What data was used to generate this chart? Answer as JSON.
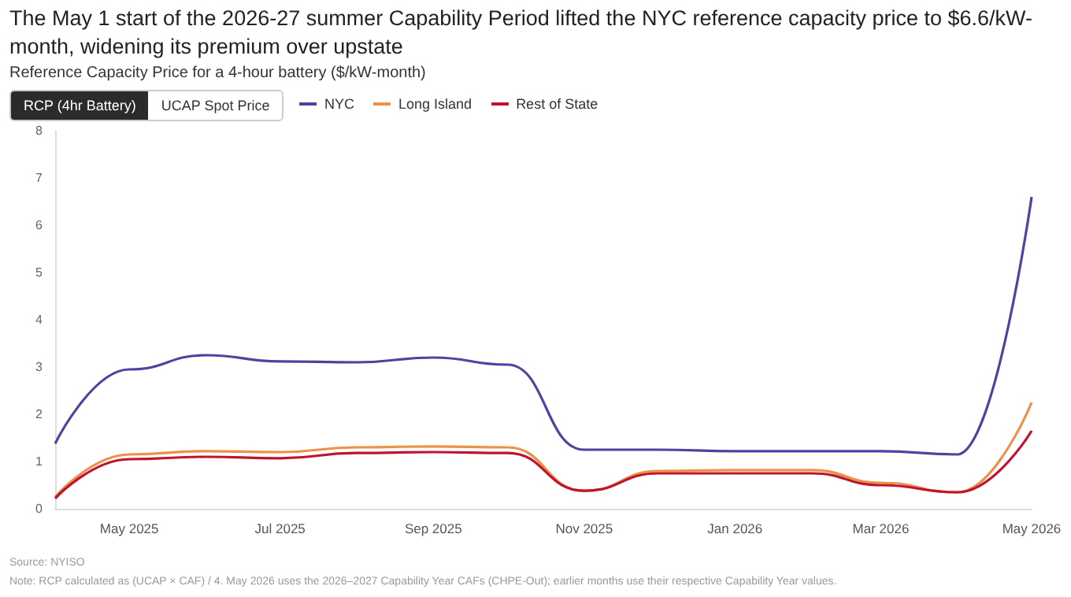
{
  "chart_data": {
    "type": "line",
    "title": "The May 1 start of the 2026-27 summer Capability Period lifted the NYC reference capacity price to $6.6/kW-month, widening its premium over upstate",
    "subtitle": "Reference Capacity Price for a 4-hour battery ($/kW-month)",
    "x": [
      "2025-04",
      "2025-05",
      "2025-06",
      "2025-07",
      "2025-08",
      "2025-09",
      "2025-10",
      "2025-11",
      "2025-12",
      "2026-01",
      "2026-02",
      "2026-03",
      "2026-04",
      "2026-05"
    ],
    "series": [
      {
        "name": "NYC",
        "color": "#4b44a0",
        "values": [
          1.38,
          2.95,
          3.25,
          3.12,
          3.1,
          3.2,
          3.05,
          1.25,
          1.25,
          1.22,
          1.22,
          1.22,
          1.15,
          6.6
        ]
      },
      {
        "name": "Long Island",
        "color": "#e8924a",
        "values": [
          0.25,
          1.15,
          1.22,
          1.2,
          1.3,
          1.32,
          1.3,
          0.38,
          0.8,
          0.82,
          0.82,
          0.55,
          0.35,
          2.25
        ]
      },
      {
        "name": "Rest of State",
        "color": "#c0142c",
        "values": [
          0.22,
          1.05,
          1.1,
          1.07,
          1.18,
          1.2,
          1.18,
          0.38,
          0.75,
          0.75,
          0.75,
          0.5,
          0.35,
          1.65
        ]
      }
    ],
    "xlim": [
      "2025-04",
      "2026-05"
    ],
    "xticks": [
      {
        "value": "2025-05",
        "label": "May 2025"
      },
      {
        "value": "2025-07",
        "label": "Jul 2025"
      },
      {
        "value": "2025-09",
        "label": "Sep 2025"
      },
      {
        "value": "2025-11",
        "label": "Nov 2025"
      },
      {
        "value": "2026-01",
        "label": "Jan 2026"
      },
      {
        "value": "2026-03",
        "label": "Mar 2026"
      },
      {
        "value": "2026-05",
        "label": "May 2026"
      }
    ],
    "ylim": [
      0,
      8
    ],
    "yticks": [
      0,
      1,
      2,
      3,
      4,
      5,
      6,
      7,
      8
    ],
    "grid": false,
    "legend": "top left",
    "marker": "none",
    "line_style": "solid",
    "annotations": [
      "RCP (4hr Battery)",
      "UCAP Spot Price",
      "Source: NYISO",
      "Note: RCP calculated as (UCAP × CAF) / 4. May 2026 uses the 2026–2027 Capability Year CAFs (CHPE-Out); earlier months use their respective Capability Year values."
    ]
  }
}
